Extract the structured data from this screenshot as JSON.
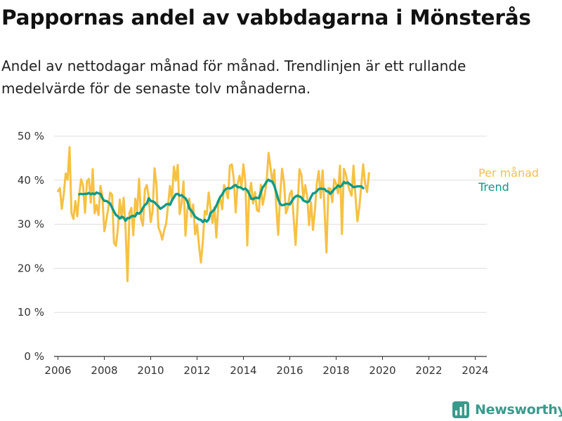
{
  "header": {
    "title": "Pappornas andel av vabbdagarna i Mönsterås",
    "subtitle": "Andel av nettodagar månad för månad. Trendlinjen är ett rullande medelvärde för de senaste tolv månaderna."
  },
  "brand": {
    "name": "Newsworthy",
    "icon": "newsworthy-logo-icon",
    "color": "#3a9a8c"
  },
  "colors": {
    "monthly": "#f6c143",
    "trend": "#0e9a87",
    "grid": "#dddddd",
    "axis": "#333333",
    "tick_text": "#333333"
  },
  "chart_data": {
    "type": "line",
    "title": "Pappornas andel av vabbdagarna i Mönsterås",
    "subtitle": "Andel av nettodagar månad för månad. Trendlinjen är ett rullande medelvärde för de senaste tolv månaderna.",
    "xlabel": "",
    "ylabel": "",
    "ylim": [
      0,
      50
    ],
    "yticks": [
      0,
      10,
      20,
      30,
      40,
      50
    ],
    "ytick_labels": [
      "0 %",
      "10 %",
      "20 %",
      "30 %",
      "40 %",
      "50 %"
    ],
    "xlim": [
      "2005-11",
      "2024-07"
    ],
    "xticks": [
      2006,
      2008,
      2010,
      2012,
      2014,
      2016,
      2018,
      2020,
      2022,
      2024
    ],
    "xtick_labels": [
      "2006",
      "2008",
      "2010",
      "2012",
      "2014",
      "2016",
      "2018",
      "2020",
      "2022",
      "2024"
    ],
    "grid": "horizontal",
    "legend": "right, labels at line ends",
    "series": [
      {
        "name": "Per månad",
        "color": "#f6c143",
        "start": "2006-01",
        "values": [
          37.5,
          38.2,
          33.5,
          36.8,
          41.5,
          40.1,
          47.5,
          32.5,
          31.2,
          35.3,
          31.8,
          36.8,
          40.2,
          38.8,
          32.6,
          39.7,
          40.3,
          34.9,
          42.5,
          32.5,
          34.4,
          32.1,
          38.7,
          36.4,
          28.4,
          30.8,
          33.5,
          37.2,
          36.7,
          25.8,
          25.1,
          29.0,
          35.6,
          31.3,
          36.0,
          29.1,
          17.1,
          32.6,
          33.7,
          27.5,
          35.8,
          33.0,
          40.3,
          31.2,
          29.7,
          37.9,
          38.9,
          36.1,
          30.5,
          33.0,
          42.7,
          38.9,
          29.3,
          28.2,
          26.5,
          28.7,
          30.1,
          34.4,
          38.7,
          35.4,
          43.1,
          39.9,
          43.5,
          32.3,
          34.8,
          39.7,
          27.4,
          33.4,
          35.8,
          31.7,
          34.5,
          27.7,
          30.0,
          25.2,
          21.3,
          26.1,
          33.0,
          32.2,
          37.2,
          33.5,
          30.3,
          33.9,
          27.0,
          34.4,
          36.0,
          33.4,
          38.9,
          37.5,
          35.9,
          43.3,
          43.6,
          40.3,
          32.7,
          39.1,
          41.0,
          38.5,
          43.6,
          39.6,
          25.2,
          36.8,
          39.4,
          34.7,
          37.3,
          33.2,
          32.9,
          39.0,
          34.4,
          36.6,
          39.6,
          46.2,
          43.0,
          39.3,
          42.4,
          34.1,
          27.6,
          36.4,
          42.6,
          39.6,
          32.5,
          33.8,
          36.8,
          37.6,
          31.5,
          25.3,
          33.5,
          42.5,
          41.3,
          35.8,
          38.9,
          36.3,
          29.8,
          35.0,
          28.7,
          33.1,
          39.2,
          42.1,
          36.0,
          42.2,
          33.1,
          23.6,
          38.2,
          38.1,
          35.0,
          40.2,
          39.2,
          37.0,
          43.3,
          27.8,
          42.6,
          41.4,
          39.1,
          37.6,
          36.5,
          43.3,
          36.4,
          30.7,
          33.8,
          38.8,
          43.6,
          39.1,
          37.3,
          41.6
        ]
      },
      {
        "name": "Trend",
        "color": "#0e9a87",
        "start": "2006-12",
        "values": [
          36.8,
          36.9,
          36.8,
          36.9,
          36.9,
          37.1,
          36.8,
          37.0,
          36.8,
          37.2,
          37.0,
          36.9,
          35.9,
          35.3,
          35.3,
          35.0,
          34.7,
          33.8,
          32.9,
          32.1,
          31.8,
          31.3,
          31.7,
          31.5,
          30.8,
          31.4,
          31.4,
          31.8,
          31.9,
          31.8,
          32.6,
          32.4,
          32.8,
          33.7,
          34.4,
          34.7,
          35.9,
          35.3,
          35.2,
          35.0,
          34.5,
          34.1,
          33.5,
          33.8,
          34.1,
          34.5,
          34.6,
          34.4,
          35.4,
          36.1,
          36.8,
          36.9,
          36.5,
          36.6,
          36.2,
          35.9,
          35.2,
          33.6,
          33.1,
          32.5,
          31.7,
          31.4,
          31.1,
          31.0,
          30.5,
          31.0,
          30.6,
          31.1,
          32.6,
          32.9,
          33.4,
          34.2,
          35.3,
          36.2,
          36.7,
          37.6,
          38.0,
          38.2,
          38.1,
          38.3,
          38.7,
          38.9,
          38.4,
          38.4,
          38.2,
          37.9,
          38.1,
          37.7,
          36.9,
          35.8,
          35.7,
          36.0,
          36.0,
          35.9,
          37.2,
          38.4,
          38.9,
          39.7,
          40.1,
          39.8,
          39.7,
          38.7,
          37.3,
          35.7,
          34.6,
          34.3,
          34.4,
          34.6,
          34.6,
          34.5,
          35.2,
          35.9,
          36.3,
          36.5,
          36.3,
          36.1,
          35.4,
          35.2,
          35.0,
          35.2,
          36.2,
          37.0,
          37.1,
          37.5,
          38.0,
          38.1,
          38.0,
          38.0,
          37.5,
          37.4,
          36.9,
          37.4,
          38.0,
          38.3,
          38.8,
          38.5,
          38.8,
          39.6,
          39.3,
          39.5,
          39.1,
          38.8,
          38.4,
          38.5,
          38.6,
          38.6,
          38.6,
          38.2
        ]
      }
    ]
  }
}
